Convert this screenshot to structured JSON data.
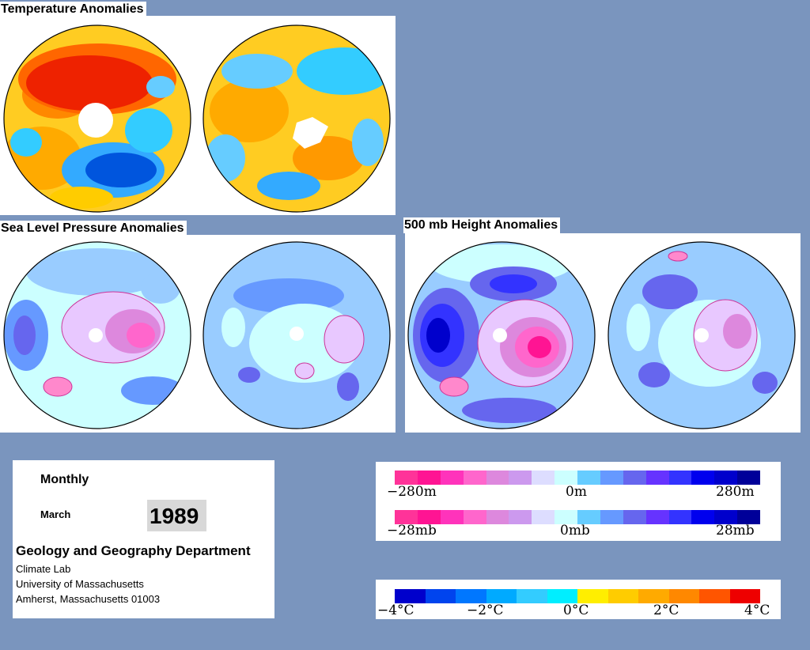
{
  "titles": {
    "temperature": "Temperature Anomalies",
    "slp": "Sea Level Pressure Anomalies",
    "height500": "500 mb Height Anomalies"
  },
  "info": {
    "period": "Monthly",
    "month": "March",
    "year": "1989",
    "department": "Geology and Geography Department",
    "lab": "Climate Lab",
    "university": "University of Massachusetts",
    "address": "Amherst, Massachusetts 01003"
  },
  "legend_height": {
    "left": "−280m",
    "center": "0m",
    "right": "280m"
  },
  "legend_pressure": {
    "left": "−28mb",
    "center": "0mb",
    "right": "28mb"
  },
  "legend_temperature": {
    "t1": "−4°C",
    "t2": "−2°C",
    "t3": "0°C",
    "t4": "2°C",
    "t5": "4°C"
  },
  "colors": {
    "anomaly_scale": [
      "#ff33a0",
      "#ff1493",
      "#ff33bb",
      "#ff66cc",
      "#dd88dd",
      "#cc99ee",
      "#ddddff",
      "#ccffff",
      "#66ccff",
      "#6699ff",
      "#6666ee",
      "#6633ff",
      "#3333ff",
      "#0000ee",
      "#0000cc",
      "#000099"
    ],
    "temperature_scale": [
      "#0000cc",
      "#0044ee",
      "#0077ff",
      "#00aaff",
      "#33ccff",
      "#00eeff",
      "#ffee00",
      "#ffcc00",
      "#ffaa00",
      "#ff8800",
      "#ff5500",
      "#ee0000"
    ]
  }
}
